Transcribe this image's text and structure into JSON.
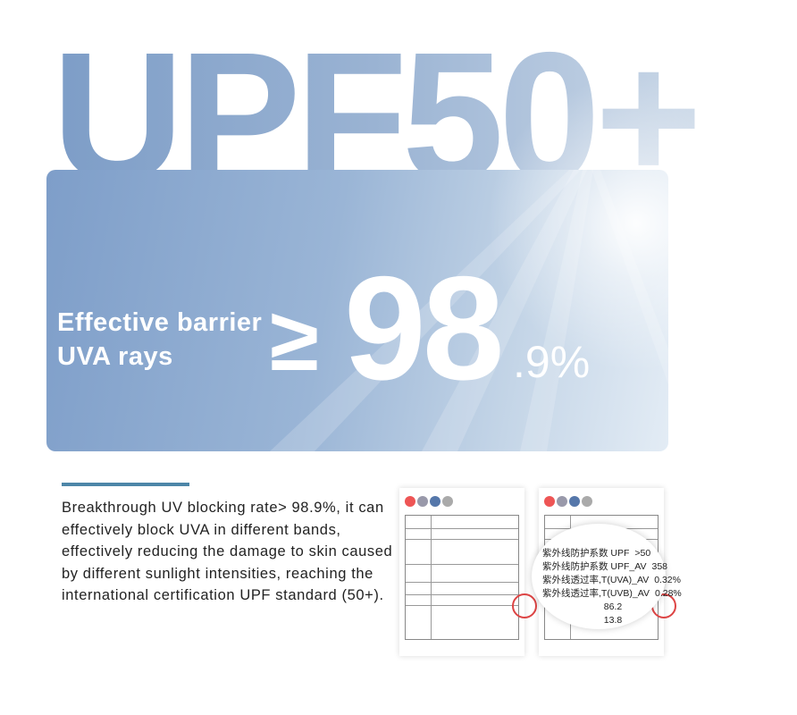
{
  "headline": "UPF50+",
  "panel": {
    "line1": "Effective barrier",
    "line2": "UVA rays",
    "symbol": "≥",
    "value_main": "98",
    "value_decimal": ".9%"
  },
  "description": "Breakthrough UV blocking rate> 98.9%, it can effectively block UVA in different bands, effectively reducing the damage to skin caused by different sunlight intensities, reaching the international certification UPF standard (50+).",
  "report_zoom": {
    "rows": [
      {
        "label": "紫外线防护系数 UPF",
        "value": ">50"
      },
      {
        "label": "紫外线防护系数 UPF_AV",
        "value": "358"
      },
      {
        "label": "紫外线透过率,T(UVA)_AV",
        "value": "0.32%"
      },
      {
        "label": "紫外线透过率,T(UVB)_AV",
        "value": "0.28%"
      }
    ],
    "extra": [
      "86.2",
      "13.8"
    ]
  },
  "colors": {
    "accent": "#4d86a8",
    "panel_start": "#7e9ec9",
    "panel_end": "#e3ecf5"
  }
}
